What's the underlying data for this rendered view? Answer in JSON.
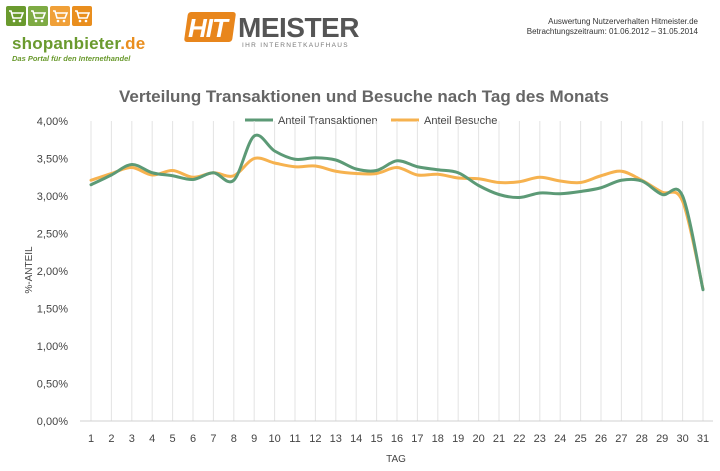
{
  "header": {
    "shop_logo": {
      "name_main": "shopanbieter",
      "name_tld": ".de",
      "tagline": "Das Portal für den Internethandel"
    },
    "partner_logo": {
      "hit": "HIT",
      "meister": "MEISTER",
      "subline": "IHR INTERNETKAUFHAUS"
    },
    "info_line1": "Auswertung Nutzerverhalten Hitmeister.de",
    "info_line2": "Betrachtungszeitraum: 01.06.2012 – 31.05.2014"
  },
  "colors": {
    "transaktionen": "#5c9a76",
    "besuche": "#f6b24f",
    "logo_green": "#6a9a2e",
    "logo_orange": "#e98e1e"
  },
  "icons": [
    "cart-icon",
    "cart-icon",
    "cart-icon",
    "cart-icon"
  ],
  "chart_data": {
    "type": "line",
    "title": "Verteilung Transaktionen und Besuche nach Tag des Monats",
    "xlabel": "TAG",
    "ylabel": "%-ANTEIL",
    "ylim": [
      0,
      4
    ],
    "y_ticks": [
      "0,00%",
      "0,50%",
      "1,00%",
      "1,50%",
      "2,00%",
      "2,50%",
      "3,00%",
      "3,50%",
      "4,00%"
    ],
    "grid": "vertical",
    "legend_position": "top",
    "x": [
      "1",
      "2",
      "3",
      "4",
      "5",
      "6",
      "7",
      "8",
      "9",
      "10",
      "11",
      "12",
      "13",
      "14",
      "15",
      "16",
      "17",
      "18",
      "19",
      "20",
      "21",
      "22",
      "23",
      "24",
      "25",
      "26",
      "27",
      "28",
      "29",
      "30",
      "31"
    ],
    "series": [
      {
        "name": "Anteil Transaktionen",
        "values": [
          3.15,
          3.28,
          3.42,
          3.31,
          3.27,
          3.22,
          3.31,
          3.21,
          3.8,
          3.6,
          3.49,
          3.51,
          3.48,
          3.36,
          3.34,
          3.47,
          3.39,
          3.35,
          3.31,
          3.14,
          3.02,
          2.98,
          3.04,
          3.03,
          3.06,
          3.11,
          3.21,
          3.2,
          3.02,
          3.0,
          1.75
        ]
      },
      {
        "name": "Anteil Besuche",
        "values": [
          3.21,
          3.3,
          3.38,
          3.28,
          3.34,
          3.25,
          3.31,
          3.27,
          3.5,
          3.44,
          3.39,
          3.4,
          3.33,
          3.3,
          3.3,
          3.38,
          3.28,
          3.29,
          3.24,
          3.23,
          3.18,
          3.19,
          3.25,
          3.2,
          3.18,
          3.27,
          3.33,
          3.21,
          3.05,
          2.93,
          1.76
        ]
      }
    ]
  }
}
